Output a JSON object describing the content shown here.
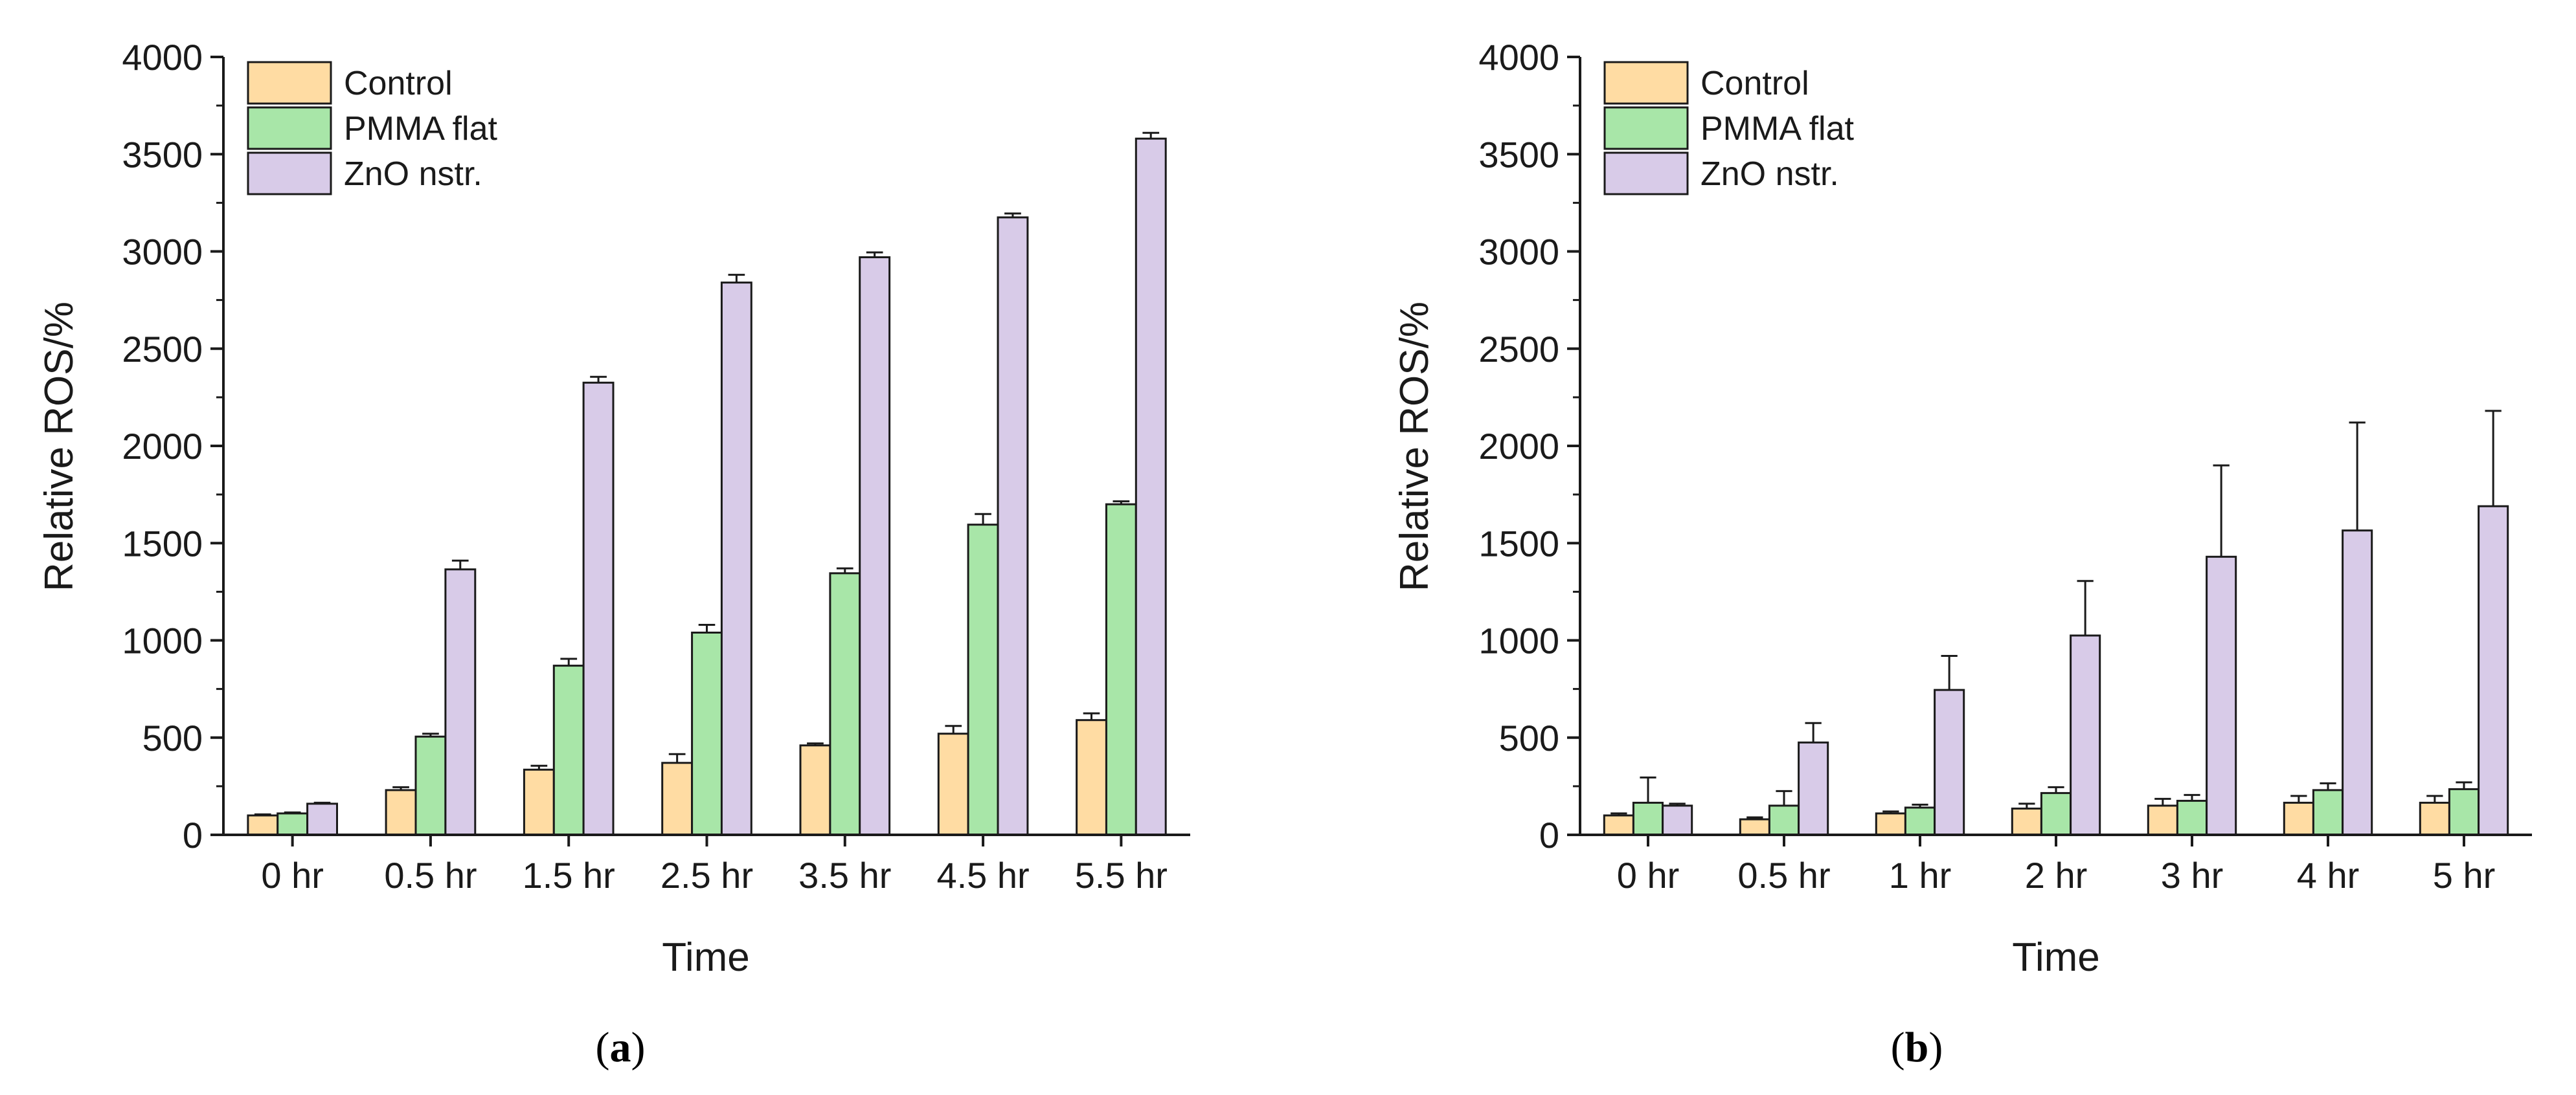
{
  "colors": {
    "control": "#ffdca3",
    "pmma": "#a8e6a8",
    "zno": "#d8cbe8",
    "axis": "#1a1a1a"
  },
  "chart_data": [
    {
      "type": "bar",
      "panel": "a",
      "panel_label": {
        "open": "(",
        "letter": "a",
        "close": ")"
      },
      "xlabel": "Time",
      "ylabel": "Relative ROS/%",
      "ylim": [
        0,
        4000
      ],
      "yticks": [
        0,
        500,
        1000,
        1500,
        2000,
        2500,
        3000,
        3500,
        4000
      ],
      "categories": [
        "0 hr",
        "0.5 hr",
        "1.5 hr",
        "2.5 hr",
        "3.5 hr",
        "4.5 hr",
        "5.5 hr"
      ],
      "legend_position": "top-left",
      "series": [
        {
          "name": "Control",
          "color_key": "control",
          "values": [
            100,
            230,
            335,
            370,
            460,
            520,
            590
          ],
          "errors": [
            5,
            15,
            20,
            45,
            10,
            40,
            35
          ]
        },
        {
          "name": "PMMA flat",
          "color_key": "pmma",
          "values": [
            110,
            505,
            870,
            1040,
            1345,
            1595,
            1700
          ],
          "errors": [
            5,
            15,
            35,
            40,
            25,
            55,
            15
          ]
        },
        {
          "name": "ZnO nstr.",
          "color_key": "zno",
          "values": [
            160,
            1365,
            2325,
            2840,
            2970,
            3175,
            3580
          ],
          "errors": [
            5,
            45,
            30,
            40,
            25,
            20,
            30
          ]
        }
      ]
    },
    {
      "type": "bar",
      "panel": "b",
      "panel_label": {
        "open": "(",
        "letter": "b",
        "close": ")"
      },
      "xlabel": "Time",
      "ylabel": "Relative ROS/%",
      "ylim": [
        0,
        4000
      ],
      "yticks": [
        0,
        500,
        1000,
        1500,
        2000,
        2500,
        3000,
        3500,
        4000
      ],
      "categories": [
        "0 hr",
        "0.5 hr",
        "1 hr",
        "2 hr",
        "3 hr",
        "4 hr",
        "5 hr"
      ],
      "legend_position": "top-left",
      "series": [
        {
          "name": "Control",
          "color_key": "control",
          "values": [
            100,
            80,
            110,
            135,
            150,
            165,
            165
          ],
          "errors": [
            10,
            10,
            10,
            25,
            35,
            35,
            35
          ]
        },
        {
          "name": "PMMA flat",
          "color_key": "pmma",
          "values": [
            165,
            150,
            140,
            215,
            175,
            230,
            235
          ],
          "errors": [
            130,
            75,
            15,
            30,
            30,
            35,
            35
          ]
        },
        {
          "name": "ZnO nstr.",
          "color_key": "zno",
          "values": [
            150,
            475,
            745,
            1025,
            1430,
            1565,
            1690
          ],
          "errors": [
            10,
            100,
            175,
            280,
            470,
            555,
            490
          ]
        }
      ]
    }
  ]
}
